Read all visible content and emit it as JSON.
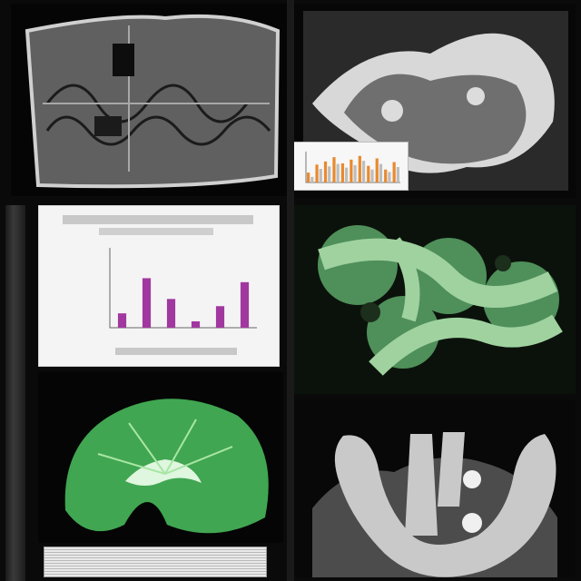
{
  "panels": {
    "top_left": {
      "icon": "dark-tissue-micrograph-icon"
    },
    "top_right": {
      "icon": "gray-network-micrograph-icon"
    },
    "mid_left": {
      "icon": "purple-bar-chart-icon"
    },
    "mid_right": {
      "icon": "green-branching-micrograph-icon"
    },
    "bottom_left": {
      "icon": "green-3d-organ-render-icon"
    },
    "bottom_right": {
      "icon": "mesh-branching-render-icon"
    }
  },
  "colors": {
    "page": "#0a0a0a",
    "purple_bar": "#a1389f",
    "orange_bar": "#e88a2f",
    "green_tissue": "#5fbf6a"
  },
  "chart_data": [
    {
      "type": "bar",
      "series": [
        {
          "values": [
            0.18,
            0.62,
            0.36,
            0.08,
            0.27,
            0.57
          ]
        }
      ]
    },
    {
      "type": "bar",
      "series": [
        {
          "values": [
            0.32,
            0.58,
            0.68,
            0.82,
            0.62,
            0.74,
            0.86,
            0.54,
            0.78,
            0.42,
            0.66
          ]
        },
        {
          "values": [
            0.18,
            0.44,
            0.52,
            0.6,
            0.48,
            0.56,
            0.7,
            0.42,
            0.6,
            0.34,
            0.5
          ]
        }
      ]
    }
  ]
}
